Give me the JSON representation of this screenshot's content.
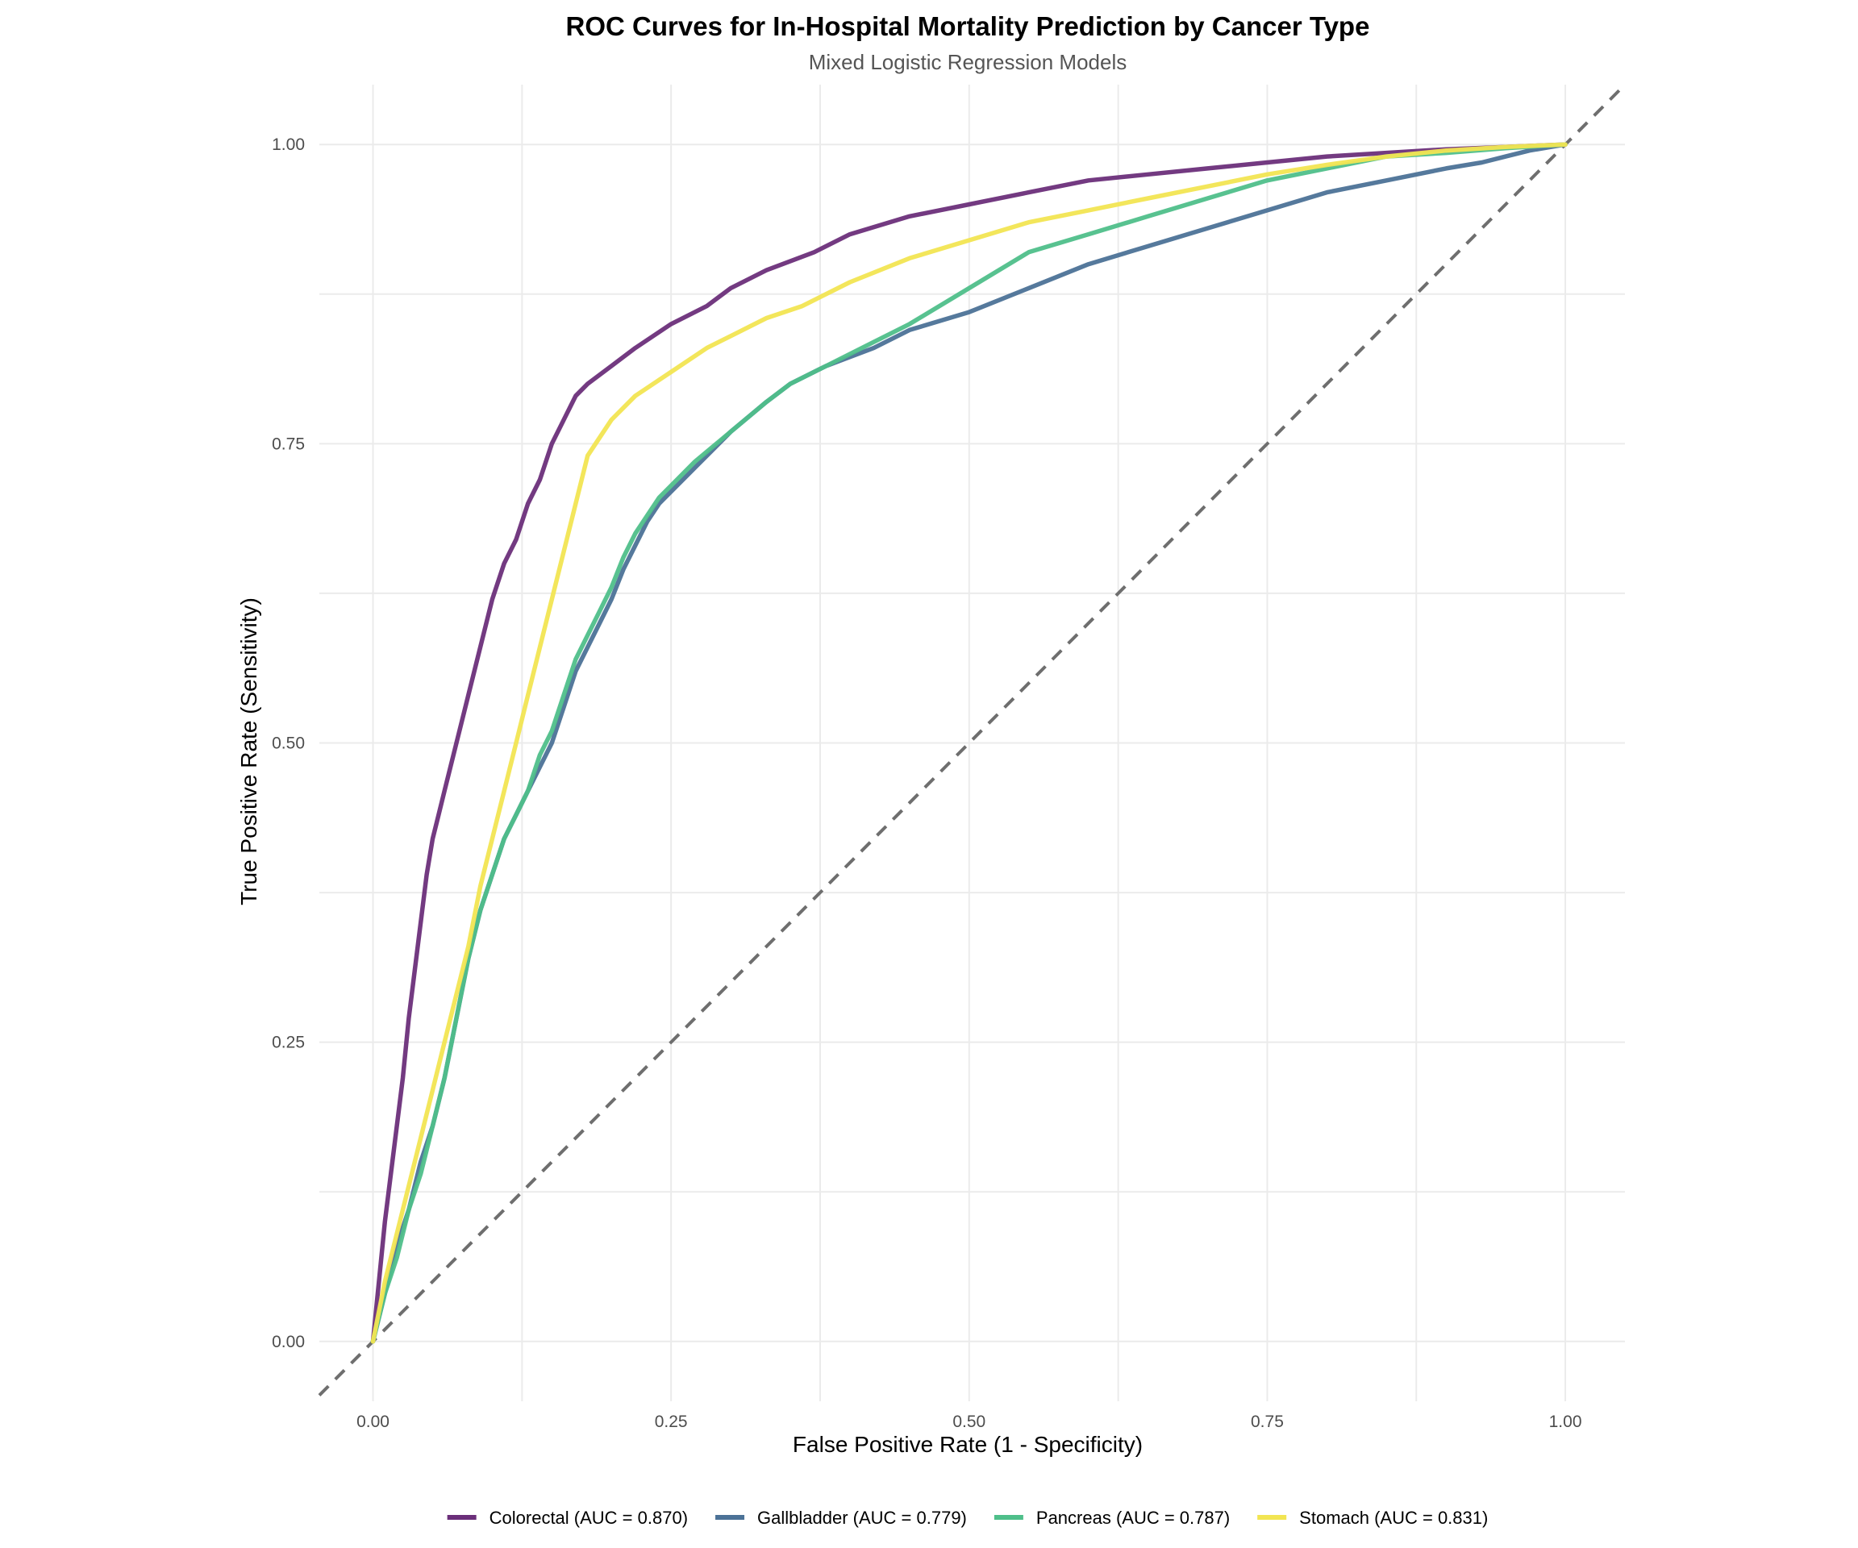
{
  "chart_data": {
    "type": "line",
    "title": "ROC Curves for In-Hospital Mortality Prediction by Cancer Type",
    "subtitle": "Mixed Logistic Regression Models",
    "xlabel": "False Positive Rate (1 - Specificity)",
    "ylabel": "True Positive Rate (Sensitivity)",
    "xlim": [
      -0.045,
      1.05
    ],
    "ylim": [
      -0.05,
      1.05
    ],
    "xticks": [
      0.0,
      0.25,
      0.5,
      0.75,
      1.0
    ],
    "xtick_labels": [
      "0.00",
      "0.25",
      "0.50",
      "0.75",
      "1.00"
    ],
    "yticks": [
      0.0,
      0.25,
      0.5,
      0.75,
      1.0
    ],
    "ytick_labels": [
      "0.00",
      "0.25",
      "0.50",
      "0.75",
      "1.00"
    ],
    "grid": true,
    "legend_position": "bottom",
    "reference_line": {
      "x": [
        -0.045,
        1.05
      ],
      "y": [
        -0.045,
        1.05
      ],
      "color": "#6e6e6e",
      "style": "dashed"
    },
    "series": [
      {
        "name": "Colorectal (AUC = 0.870)",
        "color": "#6b2f7a",
        "x": [
          0.0,
          0.005,
          0.01,
          0.015,
          0.02,
          0.025,
          0.03,
          0.035,
          0.04,
          0.045,
          0.05,
          0.055,
          0.06,
          0.065,
          0.07,
          0.08,
          0.09,
          0.1,
          0.11,
          0.12,
          0.13,
          0.14,
          0.15,
          0.16,
          0.17,
          0.18,
          0.2,
          0.22,
          0.25,
          0.28,
          0.3,
          0.33,
          0.37,
          0.4,
          0.45,
          0.5,
          0.55,
          0.6,
          0.65,
          0.7,
          0.75,
          0.8,
          0.85,
          0.9,
          0.95,
          1.0
        ],
        "y": [
          0.0,
          0.05,
          0.1,
          0.14,
          0.18,
          0.22,
          0.27,
          0.31,
          0.35,
          0.39,
          0.42,
          0.44,
          0.46,
          0.48,
          0.5,
          0.54,
          0.58,
          0.62,
          0.65,
          0.67,
          0.7,
          0.72,
          0.75,
          0.77,
          0.79,
          0.8,
          0.815,
          0.83,
          0.85,
          0.865,
          0.88,
          0.895,
          0.91,
          0.925,
          0.94,
          0.95,
          0.96,
          0.97,
          0.975,
          0.98,
          0.985,
          0.99,
          0.993,
          0.996,
          0.998,
          1.0
        ]
      },
      {
        "name": "Gallbladder (AUC = 0.779)",
        "color": "#4c7297",
        "x": [
          0.0,
          0.01,
          0.02,
          0.03,
          0.04,
          0.05,
          0.06,
          0.07,
          0.08,
          0.09,
          0.1,
          0.11,
          0.12,
          0.13,
          0.14,
          0.15,
          0.16,
          0.17,
          0.18,
          0.19,
          0.2,
          0.21,
          0.22,
          0.23,
          0.24,
          0.25,
          0.27,
          0.3,
          0.33,
          0.35,
          0.38,
          0.42,
          0.45,
          0.5,
          0.55,
          0.6,
          0.65,
          0.7,
          0.75,
          0.8,
          0.85,
          0.9,
          0.93,
          0.95,
          0.97,
          1.0
        ],
        "y": [
          0.0,
          0.04,
          0.08,
          0.11,
          0.15,
          0.18,
          0.22,
          0.27,
          0.32,
          0.36,
          0.39,
          0.42,
          0.44,
          0.46,
          0.48,
          0.5,
          0.53,
          0.56,
          0.58,
          0.6,
          0.62,
          0.645,
          0.665,
          0.685,
          0.7,
          0.71,
          0.73,
          0.76,
          0.785,
          0.8,
          0.815,
          0.83,
          0.845,
          0.86,
          0.88,
          0.9,
          0.915,
          0.93,
          0.945,
          0.96,
          0.97,
          0.98,
          0.985,
          0.99,
          0.995,
          1.0
        ]
      },
      {
        "name": "Pancreas (AUC = 0.787)",
        "color": "#4fbf8a",
        "x": [
          0.0,
          0.01,
          0.02,
          0.03,
          0.04,
          0.05,
          0.06,
          0.07,
          0.08,
          0.09,
          0.1,
          0.11,
          0.12,
          0.13,
          0.14,
          0.15,
          0.16,
          0.17,
          0.18,
          0.19,
          0.2,
          0.21,
          0.22,
          0.23,
          0.24,
          0.25,
          0.27,
          0.3,
          0.33,
          0.35,
          0.38,
          0.42,
          0.45,
          0.5,
          0.55,
          0.6,
          0.65,
          0.7,
          0.75,
          0.8,
          0.85,
          0.9,
          0.95,
          1.0
        ],
        "y": [
          0.0,
          0.04,
          0.07,
          0.11,
          0.14,
          0.18,
          0.22,
          0.27,
          0.32,
          0.36,
          0.39,
          0.42,
          0.44,
          0.46,
          0.49,
          0.51,
          0.54,
          0.57,
          0.59,
          0.61,
          0.63,
          0.655,
          0.675,
          0.69,
          0.705,
          0.715,
          0.735,
          0.76,
          0.785,
          0.8,
          0.815,
          0.835,
          0.85,
          0.88,
          0.91,
          0.925,
          0.94,
          0.955,
          0.97,
          0.98,
          0.99,
          0.993,
          0.997,
          1.0
        ]
      },
      {
        "name": "Stomach (AUC = 0.831)",
        "color": "#f2e552",
        "x": [
          0.0,
          0.01,
          0.02,
          0.03,
          0.04,
          0.05,
          0.06,
          0.07,
          0.08,
          0.09,
          0.1,
          0.11,
          0.12,
          0.13,
          0.14,
          0.15,
          0.16,
          0.17,
          0.18,
          0.2,
          0.22,
          0.25,
          0.28,
          0.3,
          0.33,
          0.36,
          0.4,
          0.45,
          0.5,
          0.55,
          0.6,
          0.65,
          0.7,
          0.75,
          0.8,
          0.85,
          0.9,
          0.95,
          1.0
        ],
        "y": [
          0.0,
          0.05,
          0.09,
          0.13,
          0.17,
          0.21,
          0.25,
          0.29,
          0.33,
          0.38,
          0.42,
          0.46,
          0.5,
          0.54,
          0.58,
          0.62,
          0.66,
          0.7,
          0.74,
          0.77,
          0.79,
          0.81,
          0.83,
          0.84,
          0.855,
          0.865,
          0.885,
          0.905,
          0.92,
          0.935,
          0.945,
          0.955,
          0.965,
          0.975,
          0.983,
          0.99,
          0.995,
          0.998,
          1.0
        ]
      }
    ]
  }
}
